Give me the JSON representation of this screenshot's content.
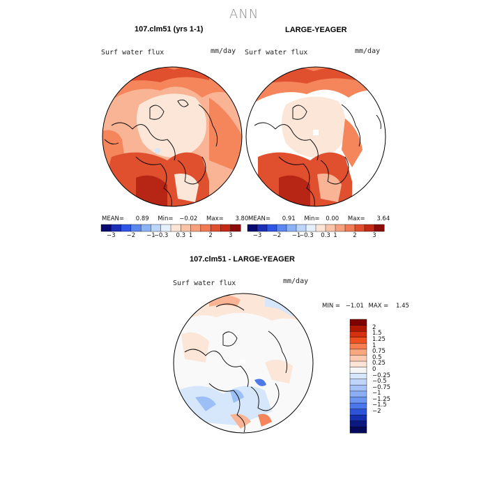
{
  "figure": {
    "title": "ANN"
  },
  "panels": [
    {
      "title": "107.clm51 (yrs 1-1)",
      "variable": "Surf water flux",
      "units": "mm/day",
      "stats": {
        "mean_label": "MEAN=",
        "mean": "0.89",
        "min_label": "Min=",
        "min": "−0.02",
        "max_label": "Max=",
        "max": "3.80"
      }
    },
    {
      "title": "LARGE-YEAGER",
      "variable": "Surf water flux",
      "units": "mm/day",
      "stats": {
        "mean_label": "MEAN=",
        "mean": "0.91",
        "min_label": "Min=",
        "min": "0.00",
        "max_label": "Max=",
        "max": "3.64"
      }
    }
  ],
  "abs_colorbar": {
    "colors": [
      "#08086e",
      "#1a2fb5",
      "#2f55e6",
      "#5a86f0",
      "#8bb2f6",
      "#bcd5fa",
      "#e6f0fd",
      "#fde4d4",
      "#fac4a8",
      "#f7a07e",
      "#f07a54",
      "#e04e2e",
      "#c42a16",
      "#8a0b08"
    ],
    "tick_labels": [
      "−3",
      "−2",
      "−1",
      "−0.3",
      "0.3",
      "1",
      "2",
      "3"
    ]
  },
  "diff_panel": {
    "title": "107.clm51 - LARGE-YEAGER",
    "variable": "Surf water flux",
    "units": "mm/day",
    "stats": {
      "min_label": "MIN =",
      "min": "−1.01",
      "max_label": "MAX =",
      "max": "1.45"
    },
    "colorbar": {
      "colors": [
        "#800000",
        "#b01800",
        "#d53010",
        "#ee5020",
        "#f67e50",
        "#f9a77e",
        "#fccab0",
        "#fde4d6",
        "#f5f5f5",
        "#d6e6fb",
        "#bfd5fa",
        "#a6c2f8",
        "#8baef5",
        "#6c95f2",
        "#4c77ec",
        "#2e52d8",
        "#1530b0",
        "#0a1880",
        "#050a5a"
      ],
      "tick_labels": [
        "2",
        "1.5",
        "1.25",
        "1",
        "0.75",
        "0.5",
        "0.25",
        "0",
        "−0.25",
        "−0.5",
        "−0.75",
        "−1",
        "−1.25",
        "−1.5",
        "−2"
      ]
    }
  },
  "map_colors": {
    "ocean_bg": "#ffffff",
    "light": "#fbe6d8",
    "mid": "#f8b495",
    "orange": "#f5865c",
    "red": "#e0502e",
    "dark": "#b72515",
    "blue_light": "#d6e6fb",
    "blue_mid": "#9cbff6",
    "blue_dark": "#4f79e6"
  }
}
